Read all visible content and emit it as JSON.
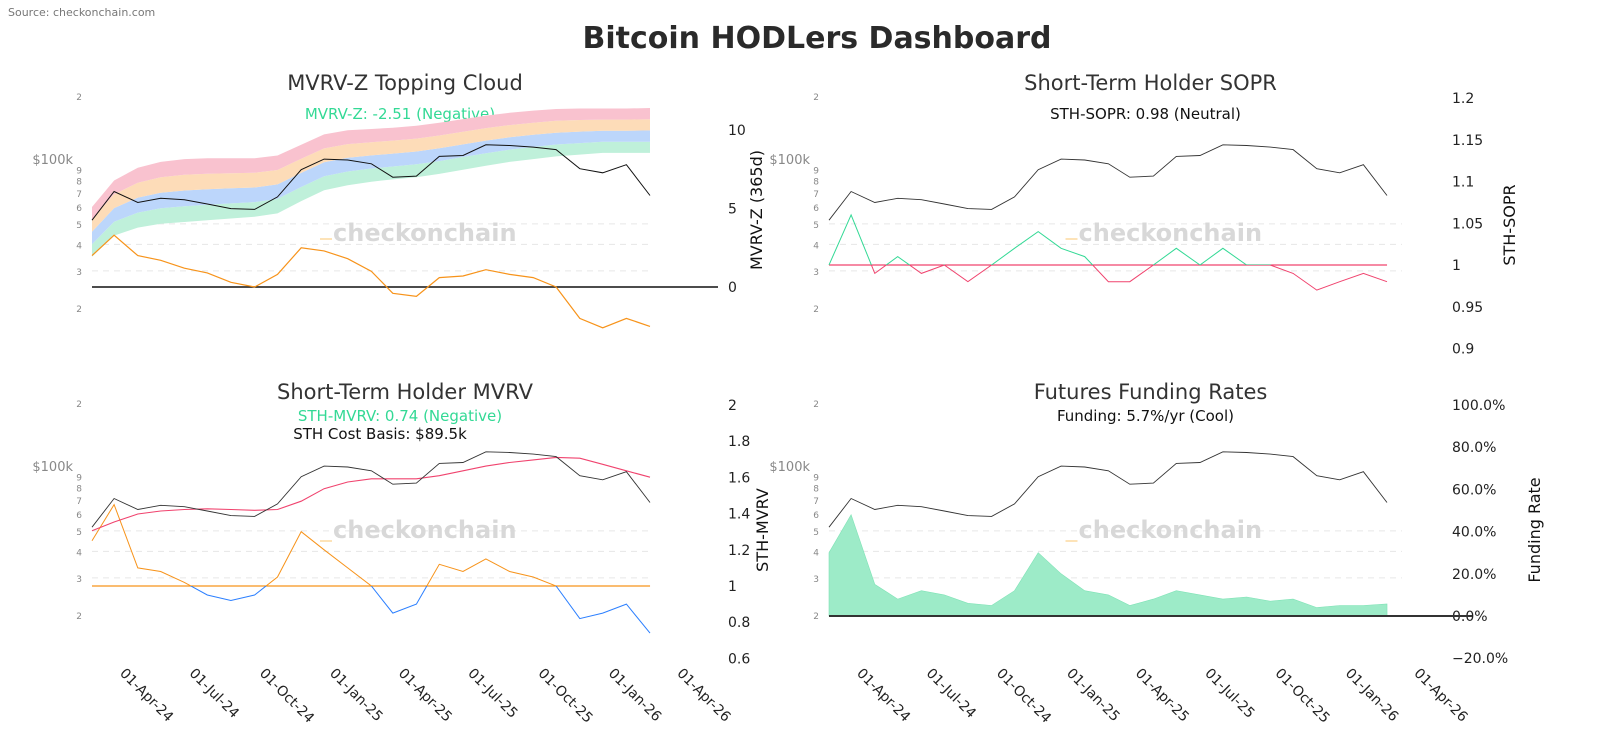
{
  "title": "Bitcoin HODLers Dashboard",
  "source": "Source: checkonchain.com",
  "watermark": "checkonchain",
  "colors": {
    "price": "#111111",
    "green": "#33d995",
    "orange": "#f7931a",
    "blue": "#2b7fff",
    "pink": "#f0436e",
    "cloud_red": "#f9c2cf",
    "cloud_orange": "#fddcb8",
    "cloud_blue": "#bcd6fb",
    "cloud_green": "#bff0da",
    "funding_fill": "#9debc8"
  },
  "chart_data": [
    {
      "id": "mvrvz",
      "type": "line",
      "title": "MVRV-Z Topping Cloud",
      "annotation": "MVRV-Z: -2.51 (Negative)",
      "annotation_color": "#33d995",
      "ylabel_right": "MVRV-Z (365d)",
      "yscale_left": "log",
      "left_ticks": [
        "2",
        "$100k",
        "9",
        "8",
        "7",
        "6",
        "5",
        "4",
        "3",
        "2"
      ],
      "right_ticks": [
        "10",
        "5",
        "0"
      ],
      "x_ticks": [
        "01-Apr-24",
        "01-Jul-24",
        "01-Oct-24",
        "01-Jan-25",
        "01-Apr-25",
        "01-Jul-25",
        "01-Oct-25",
        "01-Jan-26",
        "01-Apr-26"
      ],
      "ylim_right": [
        -3.5,
        12
      ]
    },
    {
      "id": "sopr",
      "type": "line",
      "title": "Short-Term Holder SOPR",
      "annotation": "STH-SOPR: 0.98 (Neutral)",
      "annotation_color": "#111111",
      "ylabel_right": "STH-SOPR",
      "yscale_left": "log",
      "left_ticks": [
        "2",
        "$100k",
        "9",
        "8",
        "7",
        "6",
        "5",
        "4",
        "3",
        "2"
      ],
      "right_ticks": [
        "1.2",
        "1.15",
        "1.1",
        "1.05",
        "1",
        "0.95",
        "0.9"
      ],
      "x_ticks": [
        "01-Apr-24",
        "01-Jul-24",
        "01-Oct-24",
        "01-Jan-25",
        "01-Apr-25",
        "01-Jul-25",
        "01-Oct-25",
        "01-Jan-26",
        "01-Apr-26"
      ],
      "ylim_right": [
        0.9,
        1.2
      ]
    },
    {
      "id": "sthmvrv",
      "type": "line",
      "title": "Short-Term Holder MVRV",
      "annotation": "STH-MVRV: 0.74 (Negative)",
      "annotation_color": "#33d995",
      "annotation2": "STH Cost Basis: $89.5k",
      "ylabel_right": "STH-MVRV",
      "yscale_left": "log",
      "left_ticks": [
        "2",
        "$100k",
        "9",
        "8",
        "7",
        "6",
        "5",
        "4",
        "3",
        "2"
      ],
      "right_ticks": [
        "2",
        "1.8",
        "1.6",
        "1.4",
        "1.2",
        "1",
        "0.8",
        "0.6"
      ],
      "x_ticks": [
        "01-Apr-24",
        "01-Jul-24",
        "01-Oct-24",
        "01-Jan-25",
        "01-Apr-25",
        "01-Jul-25",
        "01-Oct-25",
        "01-Jan-26",
        "01-Apr-26"
      ],
      "ylim_right": [
        0.6,
        2
      ]
    },
    {
      "id": "funding",
      "type": "area",
      "title": "Futures Funding Rates",
      "annotation": "Funding: 5.7%/yr (Cool)",
      "annotation_color": "#111111",
      "ylabel_right": "Funding Rate",
      "yscale_left": "log",
      "left_ticks": [
        "2",
        "$100k",
        "9",
        "8",
        "7",
        "6",
        "5",
        "4",
        "3",
        "2"
      ],
      "right_ticks": [
        "100.0%",
        "80.0%",
        "60.0%",
        "40.0%",
        "20.0%",
        "0.0%",
        "−20.0%"
      ],
      "x_ticks": [
        "01-Apr-24",
        "01-Jul-24",
        "01-Oct-24",
        "01-Jan-25",
        "01-Apr-25",
        "01-Jul-25",
        "01-Oct-25",
        "01-Jan-26",
        "01-Apr-26"
      ],
      "ylim_right": [
        -20,
        100
      ]
    }
  ],
  "series": {
    "dates": [
      "2024-02-15",
      "2024-03-15",
      "2024-04-15",
      "2024-05-15",
      "2024-06-15",
      "2024-07-15",
      "2024-08-15",
      "2024-09-15",
      "2024-10-15",
      "2024-11-15",
      "2024-12-15",
      "2025-01-15",
      "2025-02-15",
      "2025-03-15",
      "2025-04-15",
      "2025-05-15",
      "2025-06-15",
      "2025-07-15",
      "2025-08-15",
      "2025-09-15",
      "2025-10-15",
      "2025-11-15",
      "2025-12-15",
      "2026-01-15",
      "2026-02-15"
    ],
    "price": [
      52000,
      71000,
      63000,
      66000,
      65000,
      62000,
      59000,
      58500,
      67000,
      90000,
      101000,
      100000,
      96000,
      83000,
      84000,
      104000,
      105000,
      118000,
      117000,
      115000,
      112000,
      91000,
      87000,
      95000,
      68000
    ],
    "mvrv_z": [
      2.0,
      3.3,
      2.0,
      1.7,
      1.2,
      0.9,
      0.3,
      0.0,
      0.8,
      2.5,
      2.3,
      1.8,
      1.0,
      -0.4,
      -0.6,
      0.6,
      0.7,
      1.1,
      0.8,
      0.6,
      0.0,
      -2.0,
      -2.6,
      -2.0,
      -2.51
    ],
    "cloud_lower": [
      35000,
      44000,
      48000,
      50000,
      51000,
      52000,
      53000,
      54000,
      56000,
      64000,
      72000,
      76000,
      79000,
      81000,
      83000,
      86000,
      90000,
      94000,
      98000,
      101000,
      104000,
      106000,
      108000,
      108000,
      108000
    ],
    "cloud_upper": [
      60000,
      80000,
      92000,
      98000,
      101000,
      102000,
      102000,
      102000,
      105000,
      118000,
      132000,
      138000,
      140000,
      142000,
      145000,
      150000,
      156000,
      162000,
      167000,
      171000,
      174000,
      175000,
      175000,
      175000,
      176000
    ],
    "sth_sopr": [
      1.0,
      1.06,
      0.99,
      1.01,
      0.99,
      1.0,
      0.98,
      1.0,
      1.02,
      1.04,
      1.02,
      1.01,
      0.98,
      0.98,
      1.0,
      1.02,
      1.0,
      1.02,
      1.0,
      1.0,
      0.99,
      0.97,
      0.98,
      0.99,
      0.98
    ],
    "sth_mvrv": [
      1.25,
      1.45,
      1.1,
      1.08,
      1.02,
      0.95,
      0.92,
      0.95,
      1.05,
      1.3,
      1.2,
      1.1,
      1.0,
      0.85,
      0.9,
      1.12,
      1.08,
      1.15,
      1.08,
      1.05,
      1.0,
      0.82,
      0.85,
      0.9,
      0.74
    ],
    "sth_cost_basis": [
      50000,
      55000,
      60000,
      62000,
      63000,
      63500,
      63000,
      62500,
      63000,
      69000,
      79000,
      85000,
      88000,
      88000,
      88000,
      91000,
      96000,
      101000,
      105000,
      108000,
      111000,
      110000,
      103000,
      96000,
      89500
    ],
    "funding_rate_pct": [
      30,
      48,
      15,
      8,
      12,
      10,
      6,
      5,
      12,
      30,
      20,
      12,
      10,
      5,
      8,
      12,
      10,
      8,
      9,
      7,
      8,
      4,
      5,
      5,
      5.7
    ]
  }
}
